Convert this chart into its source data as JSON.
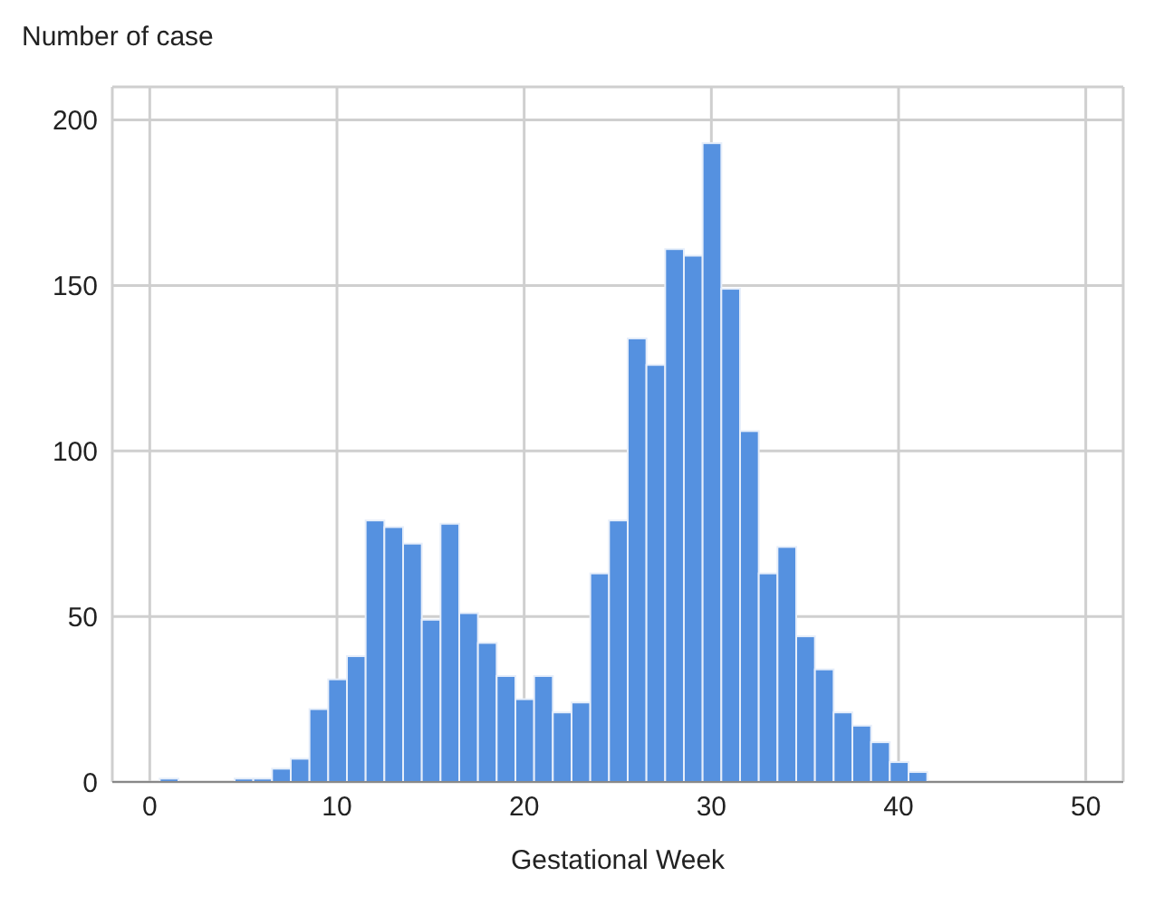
{
  "chart_data": {
    "type": "histogram",
    "xlabel": "Gestational Week",
    "ylabel": "Number of case",
    "bins": [
      0.5,
      1.5,
      2.5,
      3.5,
      4.5,
      5.5,
      6.5,
      7.5,
      8.5,
      9.5,
      10.5,
      11.5,
      12.5,
      13.5,
      14.5,
      15.5,
      16.5,
      17.5,
      18.5,
      19.5,
      20.5,
      21.5,
      22.5,
      23.5,
      24.5,
      25.5,
      26.5,
      27.5,
      28.5,
      29.5,
      30.5,
      31.5,
      32.5,
      33.5,
      34.5,
      35.5,
      36.5,
      37.5,
      38.5,
      39.5,
      40.5,
      41.5
    ],
    "values": [
      1,
      0,
      0,
      0,
      1,
      1,
      4,
      7,
      22,
      31,
      38,
      79,
      77,
      72,
      49,
      78,
      51,
      42,
      32,
      25,
      32,
      21,
      24,
      63,
      79,
      134,
      126,
      161,
      159,
      193,
      149,
      106,
      63,
      71,
      44,
      34,
      21,
      17,
      12,
      6,
      3
    ],
    "color": "#5591e0",
    "xlim": [
      -2,
      52
    ],
    "xticks": [
      0,
      10,
      20,
      30,
      40,
      50
    ],
    "ylim": [
      0,
      210
    ],
    "yticks": [
      0,
      50,
      100,
      150,
      200
    ],
    "grid": true
  }
}
